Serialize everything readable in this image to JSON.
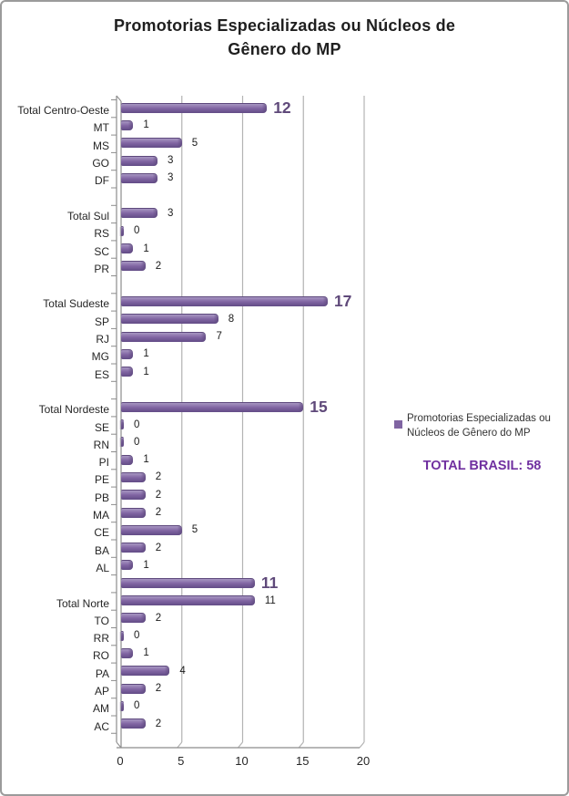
{
  "title": "Promotorias Especializadas ou Núcleos de Gênero do MP",
  "title_lines": [
    "Promotorias Especializadas ou Núcleos de",
    "Gênero do MP"
  ],
  "legend": {
    "lines": [
      "Promotorias Especializadas ou",
      "Núcleos de Gênero do MP"
    ],
    "marker": "series-color-swatch"
  },
  "total_label": "TOTAL BRASIL: 58",
  "colors": {
    "bar_fill": "#8064A2",
    "bar_fill_light": "#A796C2",
    "bar_fill_dark": "#624C86",
    "bar_edge": "#5D487C",
    "emphasis_text": "#5F497A",
    "total_text": "#7030A0",
    "gridline": "#B3B3B3",
    "axis": "#8C8C8C",
    "legend_marker": "#8064A2"
  },
  "chart_data": {
    "type": "bar",
    "orientation": "horizontal",
    "title": "Promotorias Especializadas ou Núcleos de Gênero do MP",
    "series_name": "Promotorias Especializadas ou Núcleos de Gênero do MP",
    "xlabel": "",
    "ylabel": "",
    "xlim": [
      0,
      20
    ],
    "x_ticks": [
      0,
      5,
      10,
      15,
      20
    ],
    "grid": true,
    "legend_position": "right",
    "total_brasil": 58,
    "rows": [
      {
        "label": "Total Centro-Oeste",
        "value": 12,
        "emphasis": true
      },
      {
        "label": "MT",
        "value": 1
      },
      {
        "label": "MS",
        "value": 5
      },
      {
        "label": "GO",
        "value": 3
      },
      {
        "label": "DF",
        "value": 3
      },
      {
        "label": "",
        "value": null
      },
      {
        "label": "Total Sul",
        "value": 3
      },
      {
        "label": "RS",
        "value": 0
      },
      {
        "label": "SC",
        "value": 1
      },
      {
        "label": "PR",
        "value": 2
      },
      {
        "label": "",
        "value": null
      },
      {
        "label": "Total Sudeste",
        "value": 17,
        "emphasis": true
      },
      {
        "label": "SP",
        "value": 8
      },
      {
        "label": "RJ",
        "value": 7
      },
      {
        "label": "MG",
        "value": 1
      },
      {
        "label": "ES",
        "value": 1
      },
      {
        "label": "",
        "value": null
      },
      {
        "label": "Total Nordeste",
        "value": 15,
        "emphasis": true
      },
      {
        "label": "SE",
        "value": 0
      },
      {
        "label": "RN",
        "value": 0
      },
      {
        "label": "PI",
        "value": 1
      },
      {
        "label": "PE",
        "value": 2
      },
      {
        "label": "PB",
        "value": 2
      },
      {
        "label": "MA",
        "value": 2
      },
      {
        "label": "CE",
        "value": 5
      },
      {
        "label": "BA",
        "value": 2
      },
      {
        "label": "AL",
        "value": 1
      },
      {
        "label": "",
        "value": 11,
        "emphasis": true
      },
      {
        "label": "Total Norte",
        "value": 11
      },
      {
        "label": "TO",
        "value": 2
      },
      {
        "label": "RR",
        "value": 0
      },
      {
        "label": "RO",
        "value": 1
      },
      {
        "label": "PA",
        "value": 4
      },
      {
        "label": "AP",
        "value": 2
      },
      {
        "label": "AM",
        "value": 0
      },
      {
        "label": "AC",
        "value": 2
      }
    ]
  }
}
